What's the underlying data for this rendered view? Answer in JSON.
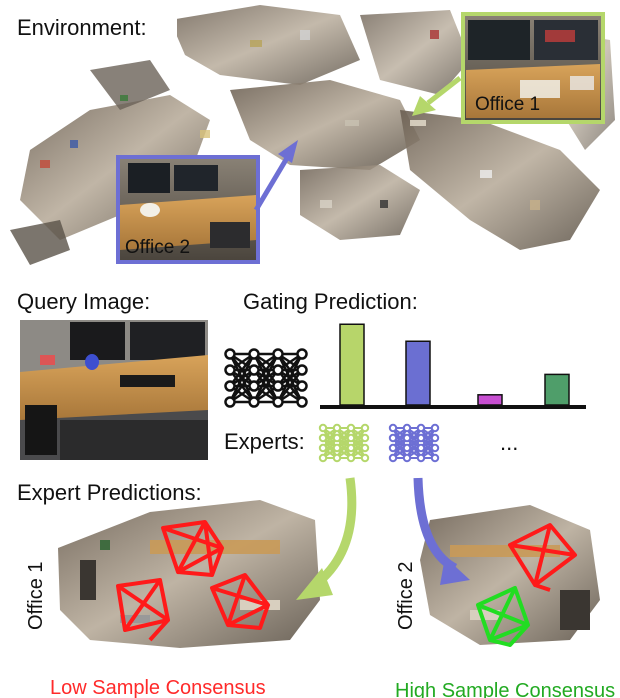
{
  "labels": {
    "environment": "Environment:",
    "office1_inset": "Office 1",
    "office2_inset": "Office 2",
    "query_image": "Query Image:",
    "gating_prediction": "Gating Prediction:",
    "experts": "Experts:",
    "ellipsis": "...",
    "expert_predictions": "Expert Predictions:",
    "office1_side": "Office 1",
    "office2_side": "Office 2",
    "low_consensus": "Low Sample Consensus",
    "high_consensus": "High Sample Consensus"
  },
  "gating": {
    "values": [
      0.95,
      0.75,
      0.12,
      0.36
    ],
    "colors": [
      "#b7d56a",
      "#6b6fd2",
      "#c84fd2",
      "#4f9e6a"
    ]
  },
  "colors": {
    "office1": "#b5d76b",
    "office2": "#6d6fd4",
    "low_consensus": "#ff2a2a",
    "high_consensus": "#22aa22",
    "camera_bad": "#ff1a1a",
    "camera_good": "#22dd22"
  }
}
